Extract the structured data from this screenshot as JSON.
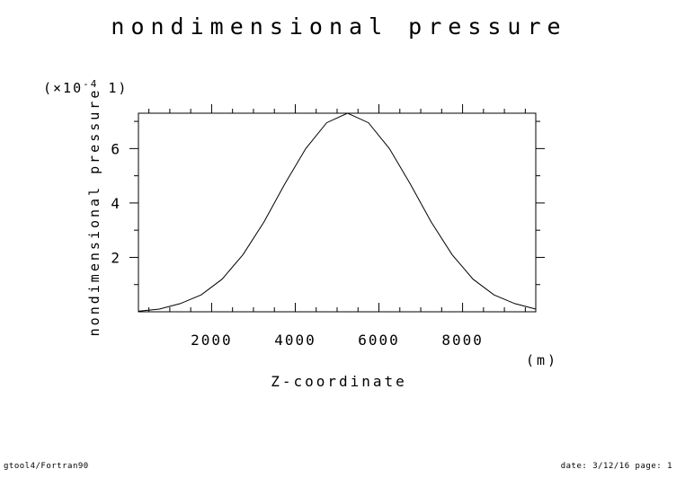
{
  "chart_data": {
    "type": "line",
    "title": "nondimensional pressure",
    "xlabel": "Z-coordinate",
    "xunit": "(m)",
    "ylabel": "nondimensional pressure",
    "yscale_label": "(×10",
    "yscale_exp": "-4",
    "yscale_tail": " 1)",
    "xlim": [
      250,
      9750
    ],
    "ylim": [
      0,
      7.3
    ],
    "xticks": [
      2000,
      4000,
      6000,
      8000
    ],
    "yticks": [
      2,
      4,
      6
    ],
    "grid": false,
    "series": [
      {
        "x": [
          250,
          750,
          1250,
          1750,
          2250,
          2750,
          3250,
          3750,
          4250,
          4750,
          5250,
          5750,
          6250,
          6750,
          7250,
          7750,
          8250,
          8750,
          9250,
          9750
        ],
        "y": [
          0.02,
          0.1,
          0.3,
          0.62,
          1.2,
          2.1,
          3.3,
          4.7,
          6.0,
          6.95,
          7.3,
          6.95,
          6.0,
          4.7,
          3.3,
          2.1,
          1.2,
          0.62,
          0.3,
          0.1
        ]
      }
    ]
  },
  "footer": {
    "left": "gtool4/Fortran90",
    "right": "date: 3/12/16 page: 1"
  }
}
